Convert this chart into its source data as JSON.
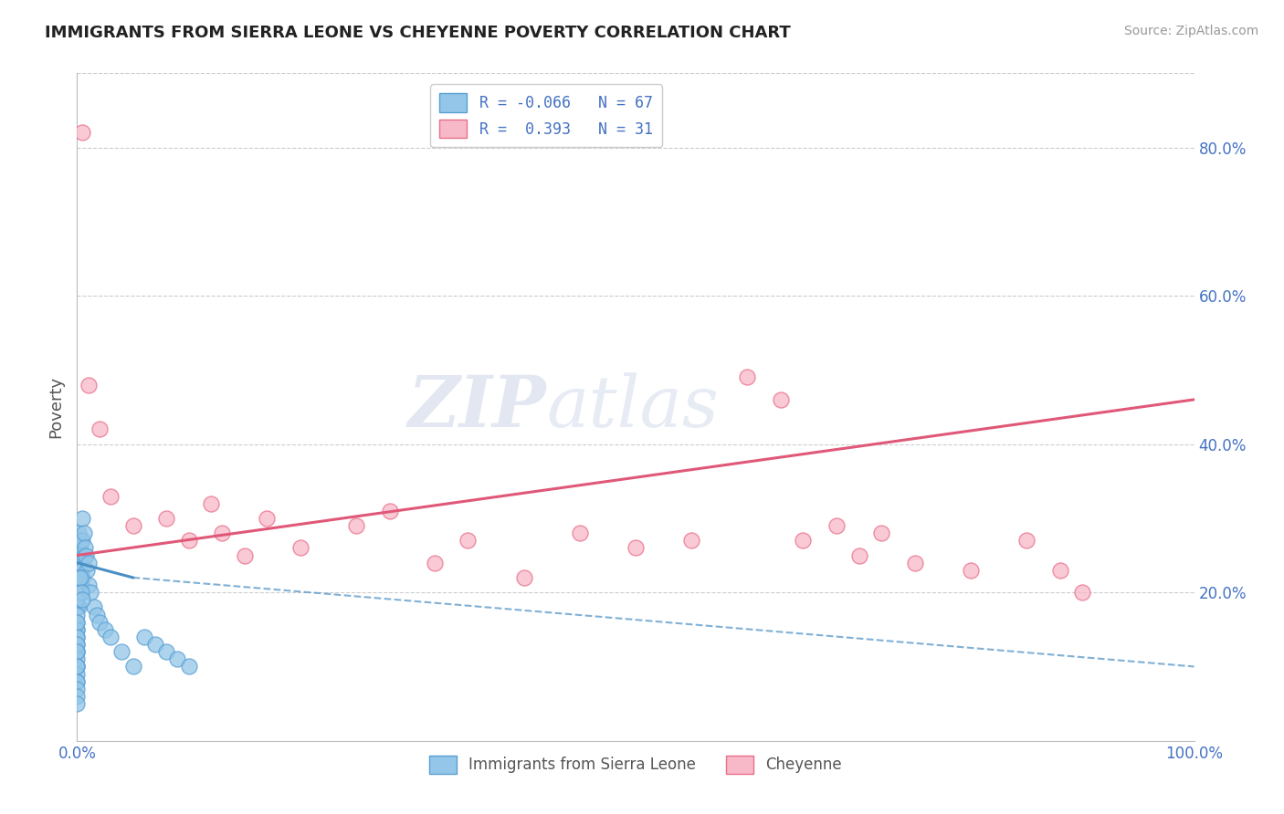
{
  "title": "IMMIGRANTS FROM SIERRA LEONE VS CHEYENNE POVERTY CORRELATION CHART",
  "source": "Source: ZipAtlas.com",
  "ylabel": "Poverty",
  "xlim": [
    0,
    100
  ],
  "ylim": [
    0,
    90
  ],
  "yticks": [
    20,
    40,
    60,
    80
  ],
  "ytick_labels": [
    "20.0%",
    "40.0%",
    "60.0%",
    "80.0%"
  ],
  "xtick_left": "0.0%",
  "xtick_right": "100.0%",
  "legend_blue_label": "Immigrants from Sierra Leone",
  "legend_pink_label": "Cheyenne",
  "legend_blue_text": "R = -0.066   N = 67",
  "legend_pink_text": "R =  0.393   N = 31",
  "blue_dot_color": "#93c6e8",
  "pink_dot_color": "#f7b8c8",
  "blue_edge_color": "#5a9fd4",
  "pink_edge_color": "#e8708a",
  "blue_line_color": "#4a8fc4",
  "pink_line_color": "#e05878",
  "watermark_zip": "ZIP",
  "watermark_atlas": "atlas",
  "background_color": "#ffffff",
  "grid_color": "#cccccc",
  "tick_color": "#4472c4",
  "title_color": "#222222",
  "ylabel_color": "#555555",
  "blue_x": [
    0.0,
    0.0,
    0.0,
    0.0,
    0.0,
    0.0,
    0.0,
    0.0,
    0.0,
    0.0,
    0.0,
    0.0,
    0.0,
    0.0,
    0.0,
    0.0,
    0.0,
    0.0,
    0.0,
    0.0,
    0.1,
    0.1,
    0.1,
    0.1,
    0.1,
    0.2,
    0.2,
    0.2,
    0.3,
    0.3,
    0.4,
    0.4,
    0.5,
    0.5,
    0.5,
    0.6,
    0.6,
    0.7,
    0.8,
    0.9,
    1.0,
    1.0,
    1.2,
    1.5,
    1.8,
    2.0,
    2.5,
    3.0,
    4.0,
    5.0,
    0.0,
    0.0,
    0.0,
    0.0,
    0.0,
    0.0,
    0.0,
    0.1,
    0.2,
    0.3,
    0.4,
    0.5,
    6.0,
    7.0,
    8.0,
    9.0,
    10.0
  ],
  "blue_y": [
    22,
    20,
    18,
    18,
    16,
    15,
    15,
    14,
    13,
    12,
    12,
    11,
    10,
    10,
    9,
    8,
    8,
    7,
    6,
    5,
    28,
    25,
    22,
    20,
    18,
    26,
    24,
    21,
    27,
    24,
    23,
    21,
    30,
    27,
    22,
    28,
    25,
    26,
    25,
    23,
    24,
    21,
    20,
    18,
    17,
    16,
    15,
    14,
    12,
    10,
    19,
    17,
    16,
    14,
    13,
    12,
    10,
    22,
    22,
    22,
    20,
    19,
    14,
    13,
    12,
    11,
    10
  ],
  "pink_x": [
    0.5,
    1.0,
    2.0,
    3.0,
    5.0,
    8.0,
    10.0,
    12.0,
    13.0,
    15.0,
    17.0,
    20.0,
    25.0,
    28.0,
    32.0,
    35.0,
    40.0,
    45.0,
    50.0,
    55.0,
    60.0,
    63.0,
    65.0,
    68.0,
    70.0,
    72.0,
    75.0,
    80.0,
    85.0,
    88.0,
    90.0
  ],
  "pink_y": [
    82,
    48,
    42,
    33,
    29,
    30,
    27,
    32,
    28,
    25,
    30,
    26,
    29,
    31,
    24,
    27,
    22,
    28,
    26,
    27,
    49,
    46,
    27,
    29,
    25,
    28,
    24,
    23,
    27,
    23,
    20
  ],
  "pink_line_x0": 0,
  "pink_line_y0": 25,
  "pink_line_x1": 100,
  "pink_line_y1": 46,
  "blue_line_solid_x0": 0,
  "blue_line_solid_y0": 24,
  "blue_line_solid_x1": 5,
  "blue_line_solid_y1": 22,
  "blue_line_dash_x1": 100,
  "blue_line_dash_y1": 10
}
